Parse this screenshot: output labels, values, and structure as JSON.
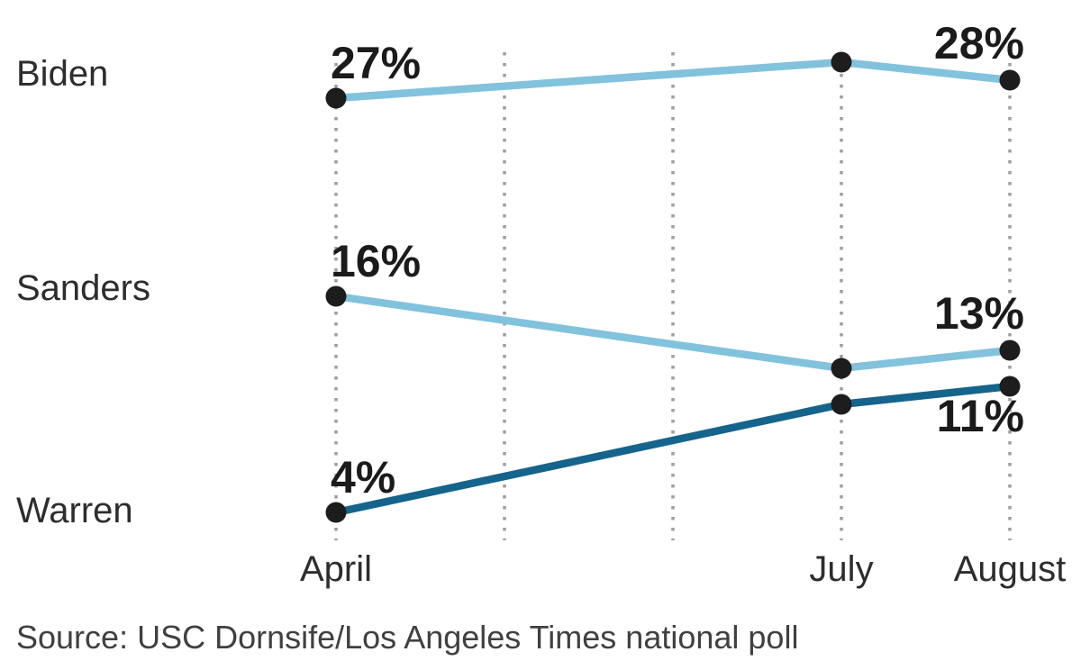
{
  "chart_data": {
    "type": "line",
    "title": "",
    "x_gridline_months": [
      "April",
      "May",
      "June",
      "July",
      "August"
    ],
    "x_ticks": [
      {
        "label": "April",
        "month_index": 0
      },
      {
        "label": "July",
        "month_index": 3
      },
      {
        "label": "August",
        "month_index": 4
      }
    ],
    "ylim": [
      0,
      32
    ],
    "y_unit": "%",
    "grid": "vertical-dotted",
    "gridline_color": "#9e9e9e",
    "point_color": "#1d1d1d",
    "legend_position": "left-inline",
    "series": [
      {
        "name": "Biden",
        "color": "#82c2dc",
        "points": [
          {
            "month": "April",
            "month_index": 0,
            "value": 27,
            "label": "27%",
            "label_pos": "above-start"
          },
          {
            "month": "July",
            "month_index": 3,
            "value": 29,
            "label": null,
            "estimated": true
          },
          {
            "month": "August",
            "month_index": 4,
            "value": 28,
            "label": "28%",
            "label_pos": "above-end"
          }
        ]
      },
      {
        "name": "Sanders",
        "color": "#82c2dc",
        "points": [
          {
            "month": "April",
            "month_index": 0,
            "value": 16,
            "label": "16%",
            "label_pos": "above-start"
          },
          {
            "month": "July",
            "month_index": 3,
            "value": 12,
            "label": null,
            "estimated": true
          },
          {
            "month": "August",
            "month_index": 4,
            "value": 13,
            "label": "13%",
            "label_pos": "above-end"
          }
        ]
      },
      {
        "name": "Warren",
        "color": "#15648c",
        "points": [
          {
            "month": "April",
            "month_index": 0,
            "value": 4,
            "label": "4%",
            "label_pos": "above-start"
          },
          {
            "month": "July",
            "month_index": 3,
            "value": 10,
            "label": null,
            "estimated": true
          },
          {
            "month": "August",
            "month_index": 4,
            "value": 11,
            "label": "11%",
            "label_pos": "below-end"
          }
        ]
      }
    ]
  },
  "source": {
    "text": "Source: USC Dornsife/Los Angeles Times national poll"
  }
}
